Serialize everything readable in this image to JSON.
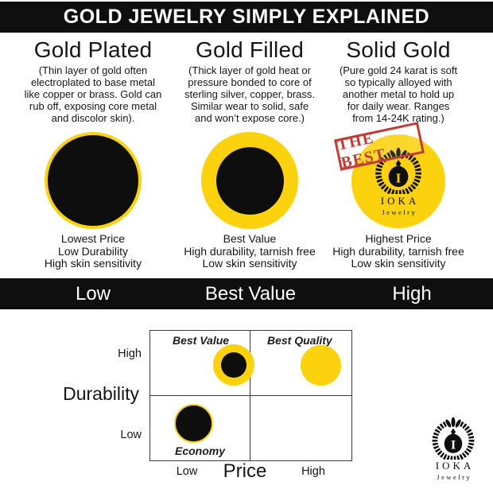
{
  "header": {
    "title": "GOLD JEWELRY SIMPLY EXPLAINED"
  },
  "columns": [
    {
      "heading": "Gold Plated",
      "description": [
        "(Thin layer of gold often",
        "electroplated to base metal",
        "like copper or brass. Gold can",
        "rub off, exposing core metal",
        "and discolor skin)."
      ],
      "illustration": "black circle with thin gold ring",
      "footer": [
        "Lowest Price",
        "Low Durability",
        "High skin sensitivity"
      ]
    },
    {
      "heading": "Gold Filled",
      "description": [
        "(Thick layer of gold heat or",
        "pressure bonded to core of",
        "sterling silver, copper, brass.",
        "Similar wear to solid, safe",
        "and won’t expose core.)"
      ],
      "illustration": "thick gold ring with black core",
      "footer": [
        "Best Value",
        "High durability, tarnish free",
        "Low skin sensitivity"
      ]
    },
    {
      "heading": "Solid Gold",
      "description": [
        "(Pure gold 24 karat is soft",
        "so typically alloyed with",
        "another metal to hold up",
        "for daily wear. Ranges",
        "from 14-24K rating.)"
      ],
      "illustration": "solid gold circle with IOKA Jewelry logo",
      "stamp": "THE BEST",
      "footer": [
        "Highest Price",
        "High durability, tarnish free",
        "Low skin sensitivity"
      ]
    }
  ],
  "scale_bar": {
    "labels": [
      "Low",
      "Best Value",
      "High"
    ]
  },
  "chart_data": {
    "type": "scatter",
    "xlabel": "Price",
    "ylabel": "Durability",
    "x_ticks": [
      "Low",
      "High"
    ],
    "y_ticks": [
      "High",
      "Low"
    ],
    "quadrants": {
      "top_left": "Best Value",
      "top_right": "Best Quality",
      "bottom_left": "Economy",
      "bottom_right": ""
    },
    "points": [
      {
        "name": "Gold Filled",
        "label": "Best Value",
        "x": 0.42,
        "y": 0.73,
        "marker": "thick gold ring, black core"
      },
      {
        "name": "Solid Gold",
        "label": "Best Quality",
        "x": 0.85,
        "y": 0.73,
        "marker": "solid gold"
      },
      {
        "name": "Gold Plated",
        "label": "Economy",
        "x": 0.22,
        "y": 0.28,
        "marker": "black with thin gold ring"
      }
    ],
    "grid": "2x2 quadrants",
    "legend": "none"
  },
  "brand": {
    "name": "IOKA",
    "sub": "Jewelry",
    "initial": "I"
  },
  "colors": {
    "gold": "#FCD20E",
    "black": "#0E0E0E",
    "stamp_red": "#C43B35",
    "bar_bg": "#0F0F0F",
    "grid_line": "#3C3C3C",
    "text": "#161616"
  }
}
